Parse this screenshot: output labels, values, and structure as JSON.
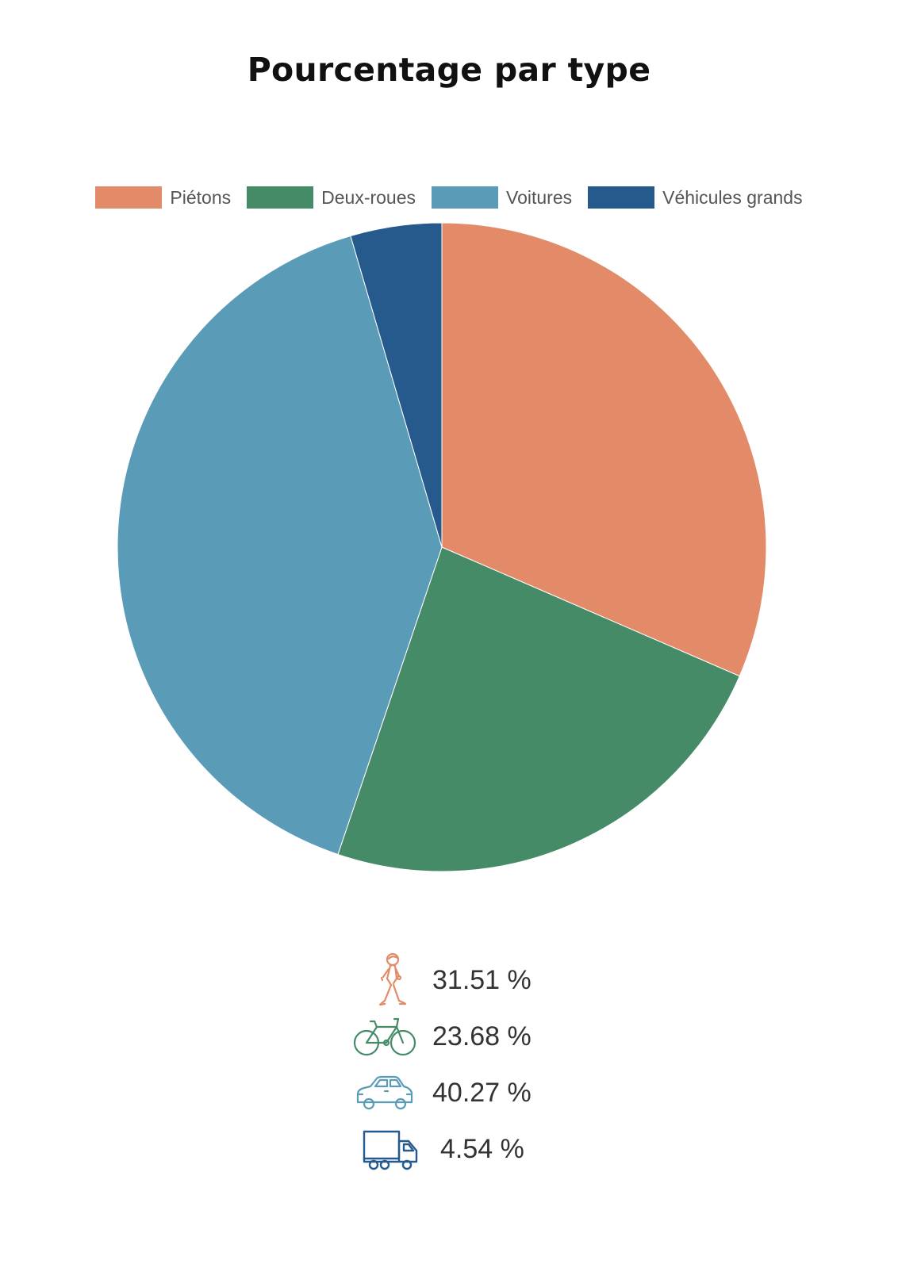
{
  "title": "Pourcentage par type",
  "chart_data": {
    "type": "pie",
    "title": "Pourcentage par type",
    "categories": [
      "Piétons",
      "Deux-roues",
      "Voitures",
      "Véhicules grands"
    ],
    "values": [
      31.51,
      23.68,
      40.27,
      4.54
    ],
    "colors": [
      "#e38b68",
      "#458b68",
      "#5a9bb8",
      "#26598c"
    ],
    "legend_position": "top"
  },
  "legend": {
    "items": [
      {
        "label": "Piétons",
        "color": "#e38b68"
      },
      {
        "label": "Deux-roues",
        "color": "#458b68"
      },
      {
        "label": "Voitures",
        "color": "#5a9bb8"
      },
      {
        "label": "Véhicules grands",
        "color": "#26598c"
      }
    ]
  },
  "stats": {
    "items": [
      {
        "icon": "pedestrian-icon",
        "value": "31.51 %",
        "color": "#e38b68"
      },
      {
        "icon": "bicycle-icon",
        "value": "23.68 %",
        "color": "#458b68"
      },
      {
        "icon": "car-icon",
        "value": "40.27 %",
        "color": "#5a9bb8"
      },
      {
        "icon": "truck-icon",
        "value": "4.54 %",
        "color": "#26598c"
      }
    ]
  }
}
